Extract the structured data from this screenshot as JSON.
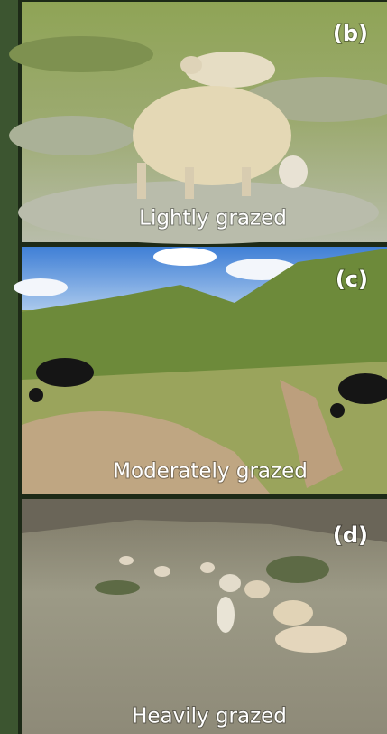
{
  "panels": [
    {
      "label": "(b)",
      "caption": "Lightly grazed"
    },
    {
      "label": "(c)",
      "caption": "Moderately grazed"
    },
    {
      "label": "(d)",
      "caption": "Heavily grazed"
    }
  ]
}
